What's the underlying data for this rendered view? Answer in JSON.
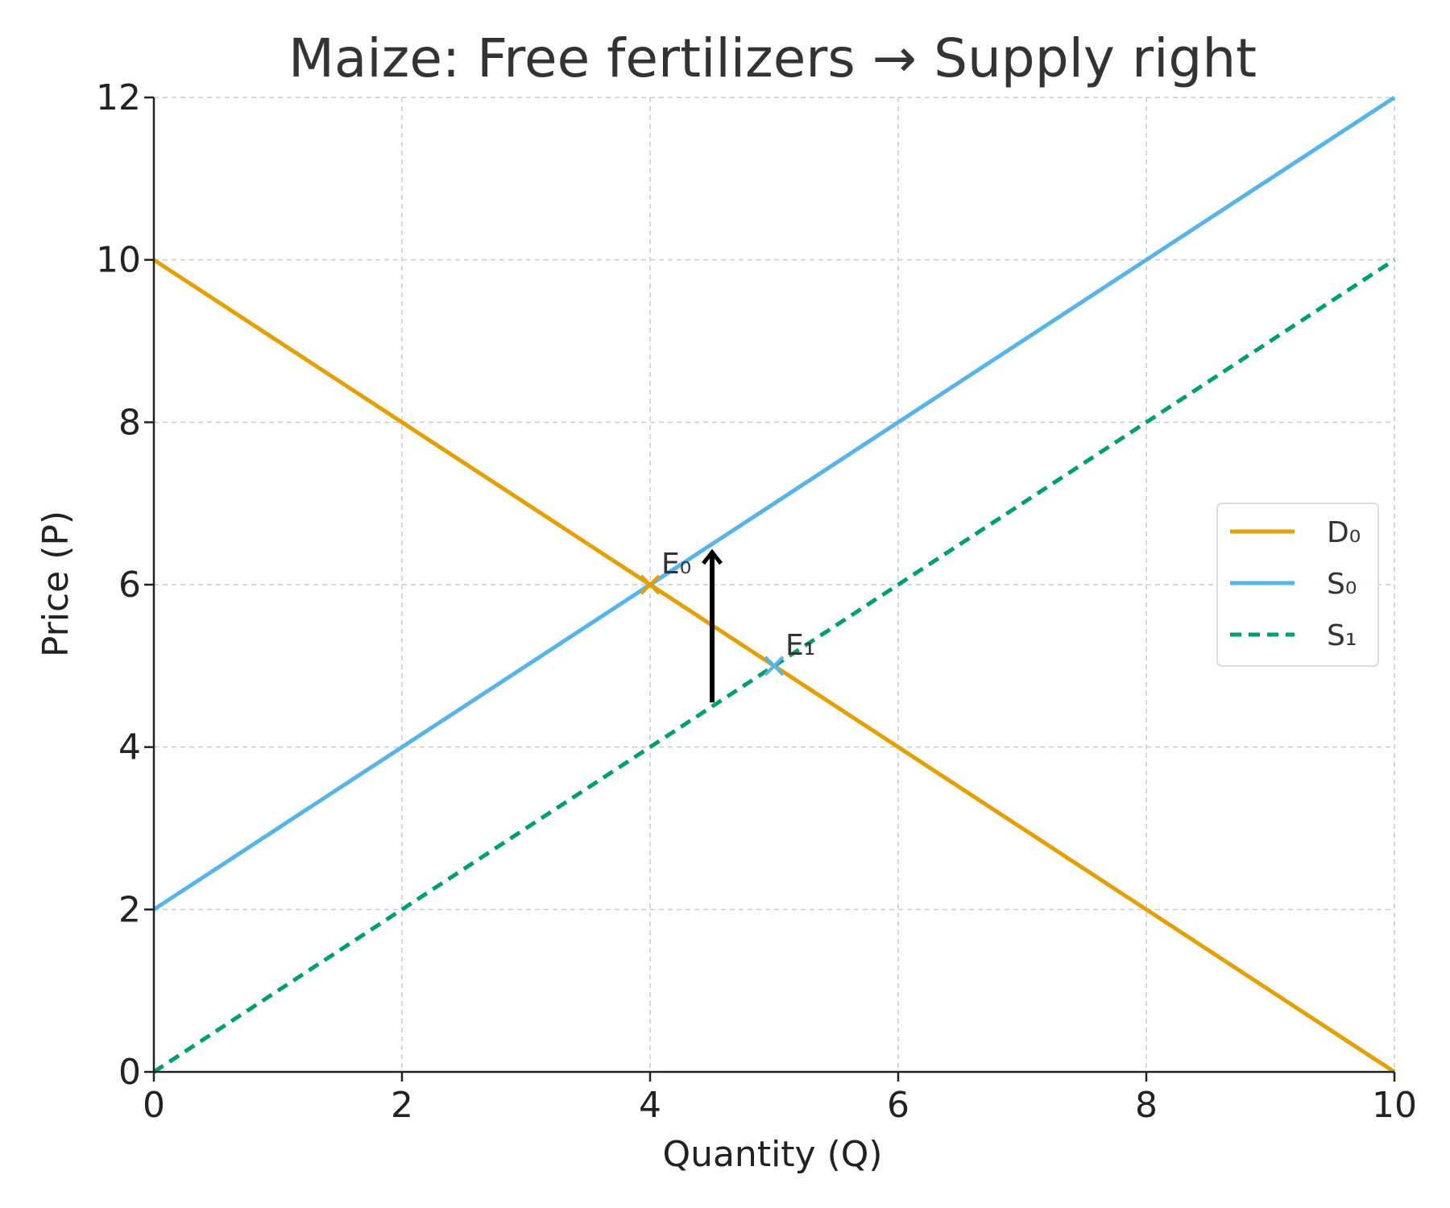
{
  "chart_data": {
    "type": "line",
    "title": "Maize: Free fertilizers → Supply right",
    "xlabel": "Quantity (Q)",
    "ylabel": "Price (P)",
    "xlim": [
      0,
      10
    ],
    "ylim": [
      0,
      12
    ],
    "x_ticks": [
      0,
      2,
      4,
      6,
      8,
      10
    ],
    "y_ticks": [
      0,
      2,
      4,
      6,
      8,
      10,
      12
    ],
    "grid": true,
    "legend_position": "right",
    "series": [
      {
        "name": "D₀",
        "x": [
          0,
          10
        ],
        "y": [
          10,
          0
        ],
        "color": "#E69F00",
        "style": "solid"
      },
      {
        "name": "S₀",
        "x": [
          0,
          10
        ],
        "y": [
          2,
          12
        ],
        "color": "#56B4E9",
        "style": "solid"
      },
      {
        "name": "S₁",
        "x": [
          0,
          10
        ],
        "y": [
          0,
          10
        ],
        "color": "#009E73",
        "style": "dashed"
      }
    ],
    "points": [
      {
        "label": "E₀",
        "x": 4,
        "y": 6,
        "color": "#E69F00",
        "marker": "x"
      },
      {
        "label": "E₁",
        "x": 5,
        "y": 5,
        "color": "#56B4E9",
        "marker": "x"
      }
    ],
    "arrows": [
      {
        "x": 4.5,
        "y_from": 4.55,
        "y_to": 6.4,
        "color": "#000000"
      }
    ]
  }
}
